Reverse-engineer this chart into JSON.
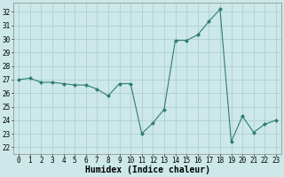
{
  "x": [
    0,
    1,
    2,
    3,
    4,
    5,
    6,
    7,
    8,
    9,
    10,
    11,
    12,
    13,
    14,
    15,
    16,
    17,
    18,
    19,
    20,
    21,
    22,
    23
  ],
  "y": [
    27.0,
    27.1,
    26.8,
    26.8,
    26.7,
    26.6,
    26.6,
    26.3,
    25.8,
    26.7,
    26.7,
    23.0,
    23.8,
    24.8,
    29.9,
    29.9,
    30.3,
    31.3,
    32.2,
    22.4,
    24.3,
    23.1,
    23.7,
    24.0
  ],
  "line_color": "#2e7d72",
  "marker": "D",
  "markersize": 2.0,
  "linewidth": 0.8,
  "bg_color": "#cce8e8",
  "grid_color": "#b0d0d0",
  "xlabel": "Humidex (Indice chaleur)",
  "ylabel_ticks": [
    22,
    23,
    24,
    25,
    26,
    27,
    28,
    29,
    30,
    31,
    32
  ],
  "ylim": [
    21.5,
    32.7
  ],
  "xlim": [
    -0.5,
    23.5
  ],
  "xticks": [
    0,
    1,
    2,
    3,
    4,
    5,
    6,
    7,
    8,
    9,
    10,
    11,
    12,
    13,
    14,
    15,
    16,
    17,
    18,
    19,
    20,
    21,
    22,
    23
  ],
  "xlabel_fontsize": 7.0,
  "tick_fontsize": 5.5
}
